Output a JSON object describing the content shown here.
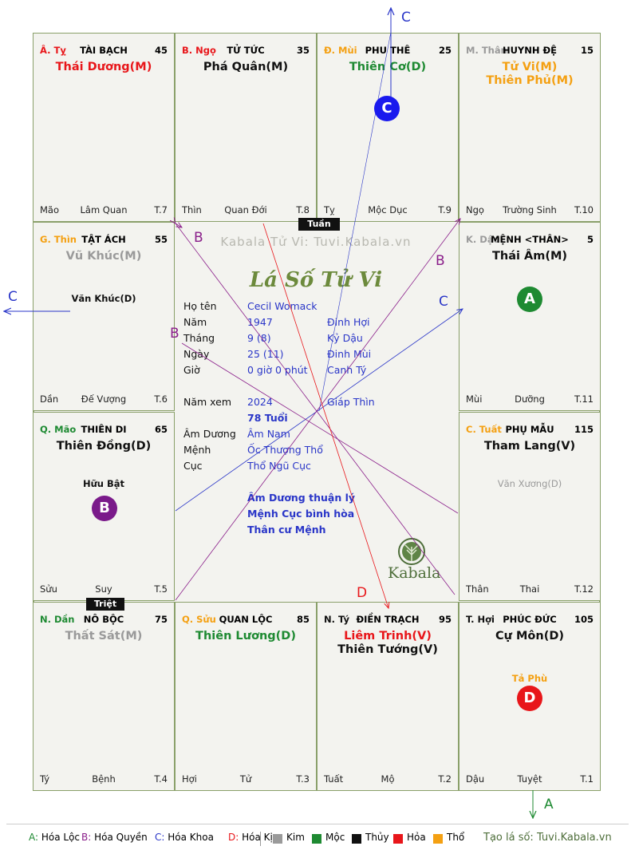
{
  "colors": {
    "kim": "#9a9a9a",
    "moc": "#1e8a32",
    "thuy": "#111111",
    "hoa": "#e8161a",
    "tho": "#f4a012",
    "blue": "#2a36c8",
    "purple": "#8a1e8a",
    "darkgreen": "#3c6e2a",
    "grey": "#999999"
  },
  "cells": [
    {
      "id": "ty-top",
      "palace": "Â. Tỵ",
      "palace_color": "#e8161a",
      "name": "TÀI BẠCH",
      "age": "45",
      "stars": [
        {
          "t": "Thái Dương(M)",
          "c": "#e8161a"
        }
      ],
      "minor": [],
      "left": "Mão",
      "center": "Lâm Quan",
      "right": "T.7"
    },
    {
      "id": "ngo",
      "palace": "B. Ngọ",
      "palace_color": "#e8161a",
      "name": "TỬ TỨC",
      "age": "35",
      "stars": [
        {
          "t": "Phá Quân(M)",
          "c": "#111111"
        }
      ],
      "minor": [],
      "left": "Thìn",
      "center": "Quan Đới",
      "right": "T.8"
    },
    {
      "id": "mui",
      "palace": "Đ. Mùi",
      "palace_color": "#f4a012",
      "name": "PHU THÊ",
      "age": "25",
      "stars": [
        {
          "t": "Thiên Cơ(D)",
          "c": "#1e8a32"
        }
      ],
      "minor": [],
      "left": "Tỵ",
      "center": "Mộc Dục",
      "right": "T.9"
    },
    {
      "id": "than-top",
      "palace": "M. Thân",
      "palace_color": "#9a9a9a",
      "name": "HUYNH ĐỆ",
      "age": "15",
      "stars": [
        {
          "t": "Tử Vi(M)",
          "c": "#f4a012"
        },
        {
          "t": "Thiên Phủ(M)",
          "c": "#f4a012"
        }
      ],
      "minor": [],
      "left": "Ngọ",
      "center": "Trường Sinh",
      "right": "T.10"
    },
    {
      "id": "thin",
      "palace": "G. Thìn",
      "palace_color": "#f4a012",
      "name": "TẬT ÁCH",
      "age": "55",
      "stars": [
        {
          "t": "Vũ Khúc(M)",
          "c": "#9a9a9a"
        }
      ],
      "minor": [
        {
          "t": "Văn Khúc(D)",
          "c": "#111111"
        }
      ],
      "left": "Dần",
      "center": "Đế Vượng",
      "right": "T.6"
    },
    {
      "id": "dau",
      "palace": "K. Dậu",
      "palace_color": "#9a9a9a",
      "name": "MỆNH <THÂN>",
      "age": "5",
      "stars": [
        {
          "t": "Thái Âm(M)",
          "c": "#111111"
        }
      ],
      "minor": [],
      "left": "Mùi",
      "center": "Dưỡng",
      "right": "T.11"
    },
    {
      "id": "mao",
      "palace": "Q. Mão",
      "palace_color": "#1e8a32",
      "name": "THIÊN DI",
      "age": "65",
      "stars": [
        {
          "t": "Thiên Đồng(D)",
          "c": "#111111"
        }
      ],
      "minor": [
        {
          "t": "Hữu Bật",
          "c": "#111111"
        }
      ],
      "left": "Sửu",
      "center": "Suy",
      "right": "T.5"
    },
    {
      "id": "tuat",
      "palace": "C. Tuất",
      "palace_color": "#f4a012",
      "name": "PHỤ MẪU",
      "age": "115",
      "stars": [
        {
          "t": "Tham Lang(V)",
          "c": "#111111"
        }
      ],
      "minor": [
        {
          "t": "Văn Xương(D)",
          "c": "#9a9a9a"
        }
      ],
      "left": "Thân",
      "center": "Thai",
      "right": "T.12"
    },
    {
      "id": "dan",
      "palace": "N. Dần",
      "palace_color": "#1e8a32",
      "name": "NÔ BỘC",
      "age": "75",
      "stars": [
        {
          "t": "Thất Sát(M)",
          "c": "#9a9a9a"
        }
      ],
      "minor": [],
      "left": "Tý",
      "center": "Bệnh",
      "right": "T.4"
    },
    {
      "id": "suu",
      "palace": "Q. Sửu",
      "palace_color": "#f4a012",
      "name": "QUAN LỘC",
      "age": "85",
      "stars": [
        {
          "t": "Thiên Lương(D)",
          "c": "#1e8a32"
        }
      ],
      "minor": [],
      "left": "Hợi",
      "center": "Tử",
      "right": "T.3"
    },
    {
      "id": "ty-bottom",
      "palace": "N. Tý",
      "palace_color": "#111111",
      "name": "ĐIỀN TRẠCH",
      "age": "95",
      "stars": [
        {
          "t": "Liêm Trinh(V)",
          "c": "#e8161a"
        },
        {
          "t": "Thiên Tướng(V)",
          "c": "#111111"
        }
      ],
      "minor": [],
      "left": "Tuất",
      "center": "Mộ",
      "right": "T.2"
    },
    {
      "id": "hoi",
      "palace": "T. Hợi",
      "palace_color": "#111111",
      "name": "PHÚC ĐỨC",
      "age": "105",
      "stars": [
        {
          "t": "Cự Môn(D)",
          "c": "#111111"
        }
      ],
      "minor": [
        {
          "t": "Tả Phù",
          "c": "#f4a012"
        }
      ],
      "left": "Dậu",
      "center": "Tuyệt",
      "right": "T.1"
    }
  ],
  "badges": {
    "a": "A",
    "b": "B",
    "c": "C",
    "d": "D"
  },
  "tags": {
    "tuan": "Tuần",
    "triet": "Triệt"
  },
  "center": {
    "watermark": "Kabala Tử Vi: Tuvi.Kabala.vn",
    "title": "Lá Số Tử Vi",
    "rows": [
      {
        "l": "Họ tên",
        "v": "Cecil Womack",
        "e": ""
      },
      {
        "l": "Năm",
        "v": "1947",
        "e": "Đinh Hợi"
      },
      {
        "l": "Tháng",
        "v": "9  (8)",
        "e": "Kỷ Dậu"
      },
      {
        "l": "Ngày",
        "v": "25  (11)",
        "e": "Đinh Mùi"
      },
      {
        "l": "Giờ",
        "v": "0 giờ 0 phút",
        "e": "Canh Tý"
      }
    ],
    "year_label": "Năm xem",
    "year_value": "2024",
    "year_can": "Giáp Thìn",
    "age": "78 Tuổi",
    "rows2": [
      {
        "l": "Âm Dương",
        "v": "Âm Nam"
      },
      {
        "l": "Mệnh",
        "v": "Ốc Thượng Thổ"
      },
      {
        "l": "Cục",
        "v": "Thổ Ngũ Cục"
      }
    ],
    "notes": [
      "Âm Dương thuận lý",
      "Mệnh Cục bình hòa",
      "Thân cư Mệnh"
    ],
    "logo": "Kabala"
  },
  "arrows": {
    "c_top": "C",
    "c_left": "C",
    "c_mid": "C",
    "a_bottom": "A",
    "b_top": "B",
    "b_mid": "B",
    "b_right": "B",
    "d": "D"
  },
  "legend": {
    "items": [
      {
        "k": "A:",
        "t": "Hóa Lộc",
        "c": "#1e8a32"
      },
      {
        "k": "B:",
        "t": "Hóa Quyền",
        "c": "#8a1e8a"
      },
      {
        "k": "C:",
        "t": "Hóa Khoa",
        "c": "#2a36c8"
      },
      {
        "k": "D:",
        "t": "Hóa Kị",
        "c": "#e8161a"
      }
    ],
    "elements": [
      {
        "t": "Kim",
        "c": "#9a9a9a"
      },
      {
        "t": "Mộc",
        "c": "#1e8a32"
      },
      {
        "t": "Thủy",
        "c": "#111111"
      },
      {
        "t": "Hỏa",
        "c": "#e8161a"
      },
      {
        "t": "Thổ",
        "c": "#f4a012"
      }
    ],
    "credit": "Tạo lá số: Tuvi.Kabala.vn"
  }
}
